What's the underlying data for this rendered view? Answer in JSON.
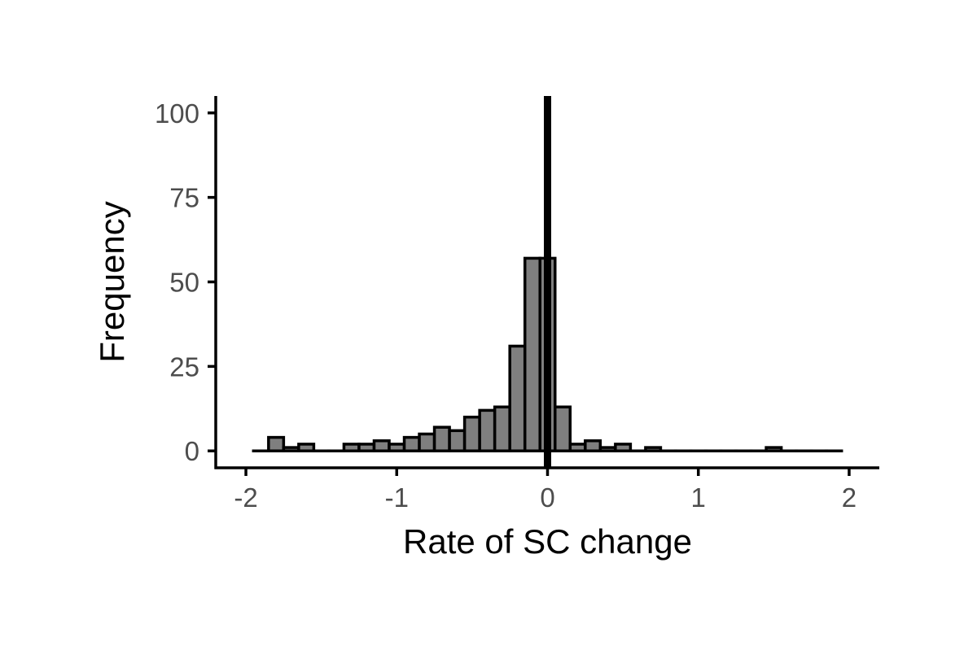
{
  "chart_data": {
    "type": "histogram",
    "title": "",
    "xlabel": "Rate of SC change",
    "ylabel": "Frequency",
    "xlim": [
      -2.2,
      2.2
    ],
    "ylim": [
      -5,
      105
    ],
    "x_ticks": [
      {
        "value": -2,
        "label": "-2"
      },
      {
        "value": -1,
        "label": "-1"
      },
      {
        "value": 0,
        "label": "0"
      },
      {
        "value": 1,
        "label": "1"
      },
      {
        "value": 2,
        "label": "2"
      }
    ],
    "y_ticks": [
      {
        "value": 0,
        "label": "0"
      },
      {
        "value": 25,
        "label": "25"
      },
      {
        "value": 50,
        "label": "50"
      },
      {
        "value": 75,
        "label": "75"
      },
      {
        "value": 100,
        "label": "100"
      }
    ],
    "bin_start": -1.95,
    "bin_width": 0.1,
    "counts": [
      0,
      4,
      1,
      2,
      0,
      0,
      2,
      2,
      3,
      2,
      4,
      5,
      7,
      6,
      10,
      12,
      13,
      31,
      57,
      57,
      13,
      2,
      3,
      1,
      2,
      0,
      1,
      0,
      0,
      0,
      0,
      0,
      0,
      0,
      1,
      0,
      0,
      0,
      0
    ],
    "vline_x": 0,
    "grid": false,
    "colors": {
      "bar_fill": "#7f7f7f",
      "bar_stroke": "#000000",
      "vline": "#000000",
      "tick_text": "#4d4d4d"
    }
  }
}
